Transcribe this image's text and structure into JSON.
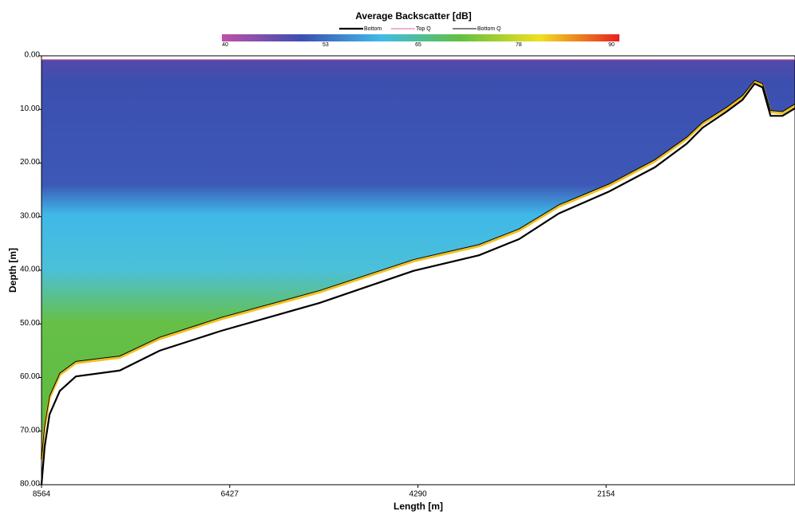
{
  "chart_data": {
    "type": "line",
    "title": "Average Backscatter [dB]",
    "xlabel": "Length [m]",
    "ylabel": "Depth [m]",
    "x": [
      8564,
      8528,
      8473,
      8356,
      8174,
      7676,
      7223,
      6524,
      5409,
      4339,
      3596,
      3143,
      2690,
      2118,
      1601,
      1239,
      1057,
      785,
      604,
      468,
      377,
      287,
      151,
      0
    ],
    "series": [
      {
        "name": "Bottom",
        "color": "#000000",
        "values": [
          80,
          72.9,
          66.9,
          62.5,
          59.8,
          58.7,
          55,
          51.3,
          46.1,
          40.1,
          37.2,
          34.2,
          29.4,
          25.3,
          20.8,
          16.4,
          13.4,
          10.4,
          8.2,
          5.2,
          5.9,
          11.2,
          11.2,
          9.7
        ]
      },
      {
        "name": "Top Q",
        "color": "#e060a0",
        "values": [
          0.7,
          0.7,
          0.7,
          0.7,
          0.7,
          0.7,
          0.7,
          0.7,
          0.7,
          0.7,
          0.7,
          0.7,
          0.7,
          0.7,
          0.7,
          0.7,
          0.7,
          0.7,
          0.7,
          0.7,
          0.7,
          0.7,
          0.7,
          0.7
        ]
      },
      {
        "name": "Bottom Q",
        "color": "#000000",
        "values": [
          75,
          69,
          63.5,
          59.2,
          57,
          56,
          52.5,
          48.8,
          43.8,
          38,
          35.2,
          32.3,
          27.8,
          23.9,
          19.4,
          15.2,
          12.4,
          9.6,
          7.4,
          4.6,
          5.2,
          10.2,
          10.4,
          8.9
        ]
      }
    ],
    "xlim": [
      8564,
      0
    ],
    "xticks": [
      8564,
      6427,
      4290,
      2154
    ],
    "ylim": [
      0,
      80
    ],
    "yticks": [
      {
        "value": 0,
        "label": "0.00"
      },
      {
        "value": 10,
        "label": "10.00"
      },
      {
        "value": 20,
        "label": "20.00"
      },
      {
        "value": 30,
        "label": "30.00"
      },
      {
        "value": 40,
        "label": "40.00"
      },
      {
        "value": 50,
        "label": "50.00"
      },
      {
        "value": 60,
        "label": "60.00"
      },
      {
        "value": 70,
        "label": "70.00"
      },
      {
        "value": 80,
        "label": "80.00"
      }
    ],
    "y_inverted": true,
    "colorbar": {
      "lim": [
        40,
        90
      ],
      "ticks": [
        40,
        53,
        65,
        78,
        90
      ],
      "colors": [
        "#c050a8",
        "#3c4fb0",
        "#3fbbe8",
        "#62c040",
        "#f0e020",
        "#e82020"
      ]
    }
  }
}
